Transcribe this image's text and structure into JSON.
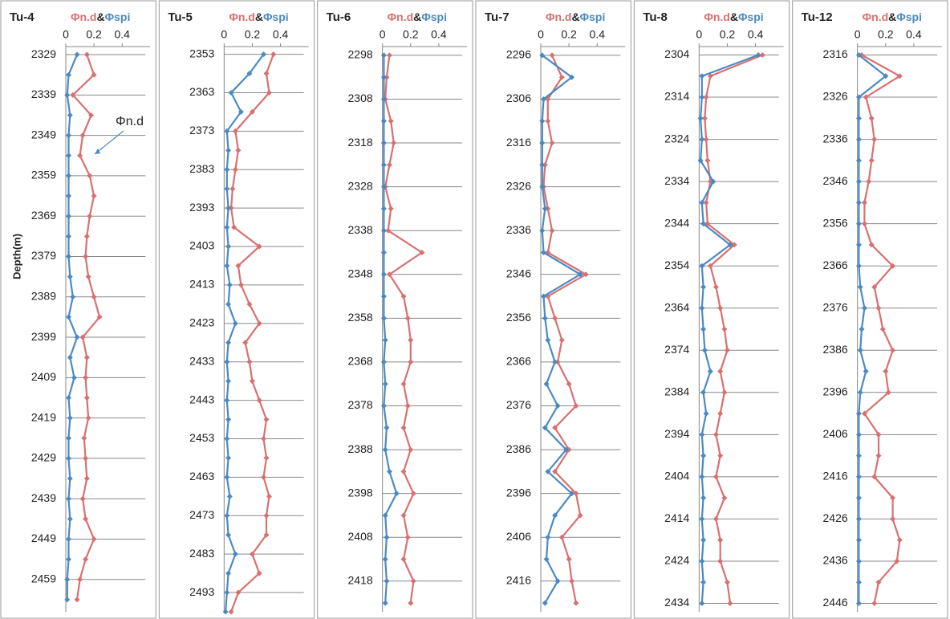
{
  "chart_data": [
    {
      "type": "line",
      "title": "Tu-4",
      "legend_separator": "&",
      "y_label": "Depth(m)",
      "annotation": "Φn.d",
      "depth": [
        2329,
        2334,
        2339,
        2344,
        2349,
        2354,
        2359,
        2364,
        2369,
        2374,
        2379,
        2384,
        2389,
        2394,
        2399,
        2404,
        2409,
        2414,
        2419,
        2424,
        2429,
        2434,
        2439,
        2444,
        2449,
        2454,
        2459,
        2464
      ],
      "series": [
        {
          "name": "Φn.d",
          "color": "#d9706f",
          "values": [
            0.15,
            0.2,
            0.05,
            0.18,
            0.12,
            0.1,
            0.17,
            0.2,
            0.17,
            0.15,
            0.14,
            0.16,
            0.2,
            0.24,
            0.12,
            0.15,
            0.14,
            0.15,
            0.16,
            0.13,
            0.14,
            0.15,
            0.12,
            0.14,
            0.2,
            0.14,
            0.1,
            0.08
          ]
        },
        {
          "name": "Φspi",
          "color": "#4a8ac4",
          "values": [
            0.08,
            0.02,
            0.01,
            0.03,
            0.02,
            0.02,
            0.02,
            0.02,
            0.02,
            0.02,
            0.02,
            0.03,
            0.05,
            0.02,
            0.08,
            0.03,
            0.06,
            0.02,
            0.03,
            0.02,
            0.02,
            0.03,
            0.02,
            0.03,
            0.02,
            0.02,
            0.01,
            0.01
          ]
        }
      ],
      "xlim": [
        0,
        0.6
      ],
      "xticks": [
        0,
        0.2,
        0.4
      ],
      "ylim": [
        2327,
        2467
      ],
      "yticks": [
        2329,
        2339,
        2349,
        2359,
        2369,
        2379,
        2389,
        2399,
        2409,
        2419,
        2429,
        2439,
        2449,
        2459
      ],
      "grid": true
    },
    {
      "type": "line",
      "title": "Tu-5",
      "legend_separator": "&",
      "depth": [
        2353,
        2358,
        2363,
        2368,
        2373,
        2378,
        2383,
        2388,
        2393,
        2398,
        2403,
        2408,
        2413,
        2418,
        2423,
        2428,
        2433,
        2438,
        2443,
        2448,
        2453,
        2458,
        2463,
        2468,
        2473,
        2478,
        2483,
        2488,
        2493,
        2498
      ],
      "series": [
        {
          "name": "Φn.d",
          "color": "#d9706f",
          "values": [
            0.35,
            0.3,
            0.32,
            0.2,
            0.08,
            0.1,
            0.08,
            0.06,
            0.05,
            0.07,
            0.25,
            0.1,
            0.12,
            0.18,
            0.25,
            0.15,
            0.18,
            0.2,
            0.25,
            0.3,
            0.28,
            0.3,
            0.28,
            0.32,
            0.3,
            0.3,
            0.2,
            0.25,
            0.1,
            0.05
          ]
        },
        {
          "name": "Φspi",
          "color": "#4a8ac4",
          "values": [
            0.28,
            0.18,
            0.05,
            0.12,
            0.02,
            0.03,
            0.02,
            0.02,
            0.03,
            0.02,
            0.03,
            0.02,
            0.04,
            0.03,
            0.08,
            0.03,
            0.02,
            0.03,
            0.02,
            0.03,
            0.02,
            0.03,
            0.02,
            0.04,
            0.02,
            0.03,
            0.08,
            0.03,
            0.02,
            0.01
          ]
        }
      ],
      "xlim": [
        0,
        0.6
      ],
      "xticks": [
        0,
        0.2,
        0.4
      ],
      "ylim": [
        2351,
        2498
      ],
      "yticks": [
        2353,
        2363,
        2373,
        2383,
        2393,
        2403,
        2413,
        2423,
        2433,
        2443,
        2453,
        2463,
        2473,
        2483,
        2493
      ],
      "grid": true
    },
    {
      "type": "line",
      "title": "Tu-6",
      "legend_separator": "&",
      "depth": [
        2298,
        2303,
        2308,
        2313,
        2318,
        2323,
        2328,
        2333,
        2338,
        2343,
        2348,
        2353,
        2358,
        2363,
        2368,
        2373,
        2378,
        2383,
        2388,
        2393,
        2398,
        2403,
        2408,
        2413,
        2418,
        2423
      ],
      "series": [
        {
          "name": "Φn.d",
          "color": "#d9706f",
          "values": [
            0.05,
            0.03,
            0.02,
            0.06,
            0.08,
            0.05,
            0.02,
            0.06,
            0.04,
            0.28,
            0.05,
            0.15,
            0.18,
            0.2,
            0.2,
            0.15,
            0.18,
            0.15,
            0.2,
            0.15,
            0.22,
            0.15,
            0.18,
            0.15,
            0.22,
            0.2
          ]
        },
        {
          "name": "Φspi",
          "color": "#4a8ac4",
          "values": [
            0.01,
            0.01,
            0.01,
            0.01,
            0.01,
            0.01,
            0.01,
            0.01,
            0.01,
            0.01,
            0.01,
            0.01,
            0.01,
            0.02,
            0.01,
            0.02,
            0.01,
            0.03,
            0.02,
            0.05,
            0.1,
            0.02,
            0.03,
            0.02,
            0.03,
            0.02
          ]
        }
      ],
      "xlim": [
        0,
        0.6
      ],
      "xticks": [
        0,
        0.2,
        0.4
      ],
      "ylim": [
        2296,
        2425
      ],
      "yticks": [
        2298,
        2308,
        2318,
        2328,
        2338,
        2348,
        2358,
        2368,
        2378,
        2388,
        2398,
        2408,
        2418
      ],
      "grid": true
    },
    {
      "type": "line",
      "title": "Tu-7",
      "legend_separator": "&",
      "depth": [
        2296,
        2301,
        2306,
        2311,
        2316,
        2321,
        2326,
        2331,
        2336,
        2341,
        2346,
        2351,
        2356,
        2361,
        2366,
        2371,
        2376,
        2381,
        2386,
        2391,
        2396,
        2401,
        2406,
        2411,
        2416,
        2421
      ],
      "series": [
        {
          "name": "Φn.d",
          "color": "#d9706f",
          "values": [
            0.08,
            0.15,
            0.05,
            0.05,
            0.08,
            0.03,
            0.02,
            0.05,
            0.08,
            0.05,
            0.32,
            0.05,
            0.1,
            0.15,
            0.12,
            0.2,
            0.25,
            0.1,
            0.2,
            0.1,
            0.25,
            0.28,
            0.15,
            0.2,
            0.22,
            0.25
          ]
        },
        {
          "name": "Φspi",
          "color": "#4a8ac4",
          "values": [
            0.01,
            0.22,
            0.02,
            0.01,
            0.01,
            0.01,
            0.01,
            0.03,
            0.01,
            0.02,
            0.28,
            0.02,
            0.03,
            0.05,
            0.1,
            0.04,
            0.12,
            0.03,
            0.18,
            0.05,
            0.22,
            0.1,
            0.05,
            0.04,
            0.12,
            0.03
          ]
        }
      ],
      "xlim": [
        0,
        0.6
      ],
      "xticks": [
        0,
        0.2,
        0.4
      ],
      "ylim": [
        2294,
        2423
      ],
      "yticks": [
        2296,
        2306,
        2316,
        2326,
        2336,
        2346,
        2356,
        2366,
        2376,
        2386,
        2396,
        2406,
        2416
      ],
      "grid": true
    },
    {
      "type": "line",
      "title": "Tu-8",
      "legend_separator": "&",
      "depth": [
        2304,
        2309,
        2314,
        2319,
        2324,
        2329,
        2334,
        2339,
        2344,
        2349,
        2354,
        2359,
        2364,
        2369,
        2374,
        2379,
        2384,
        2389,
        2394,
        2399,
        2404,
        2409,
        2414,
        2419,
        2424,
        2429,
        2434
      ],
      "series": [
        {
          "name": "Φn.d",
          "color": "#d9706f",
          "values": [
            0.45,
            0.08,
            0.05,
            0.04,
            0.05,
            0.06,
            0.08,
            0.05,
            0.06,
            0.25,
            0.08,
            0.12,
            0.15,
            0.18,
            0.2,
            0.15,
            0.18,
            0.15,
            0.12,
            0.15,
            0.12,
            0.18,
            0.12,
            0.15,
            0.15,
            0.2,
            0.22
          ]
        },
        {
          "name": "Φspi",
          "color": "#4a8ac4",
          "values": [
            0.42,
            0.02,
            0.02,
            0.01,
            0.02,
            0.01,
            0.1,
            0.02,
            0.03,
            0.22,
            0.02,
            0.03,
            0.02,
            0.03,
            0.04,
            0.08,
            0.03,
            0.05,
            0.02,
            0.03,
            0.02,
            0.03,
            0.02,
            0.03,
            0.02,
            0.03,
            0.02
          ]
        }
      ],
      "xlim": [
        0,
        0.6
      ],
      "xticks": [
        0,
        0.2,
        0.4
      ],
      "ylim": [
        2302,
        2436
      ],
      "yticks": [
        2304,
        2314,
        2324,
        2334,
        2344,
        2354,
        2364,
        2374,
        2384,
        2394,
        2404,
        2414,
        2424,
        2434
      ],
      "grid": true
    },
    {
      "type": "line",
      "title": "Tu-12",
      "legend_separator": "&",
      "depth": [
        2316,
        2321,
        2326,
        2331,
        2336,
        2341,
        2346,
        2351,
        2356,
        2361,
        2366,
        2371,
        2376,
        2381,
        2386,
        2391,
        2396,
        2401,
        2406,
        2411,
        2416,
        2421,
        2426,
        2431,
        2436,
        2441,
        2446
      ],
      "series": [
        {
          "name": "Φn.d",
          "color": "#d9706f",
          "values": [
            0.03,
            0.3,
            0.06,
            0.1,
            0.12,
            0.1,
            0.08,
            0.05,
            0.05,
            0.1,
            0.25,
            0.12,
            0.15,
            0.18,
            0.25,
            0.2,
            0.22,
            0.05,
            0.15,
            0.15,
            0.12,
            0.25,
            0.25,
            0.3,
            0.28,
            0.15,
            0.12
          ]
        },
        {
          "name": "Φspi",
          "color": "#4a8ac4",
          "values": [
            0.01,
            0.2,
            0.01,
            0.01,
            0.01,
            0.01,
            0.01,
            0.01,
            0.01,
            0.01,
            0.01,
            0.02,
            0.05,
            0.03,
            0.02,
            0.06,
            0.02,
            0.01,
            0.01,
            0.01,
            0.01,
            0.01,
            0.01,
            0.01,
            0.01,
            0.01,
            0.01
          ]
        }
      ],
      "xlim": [
        0,
        0.6
      ],
      "xticks": [
        0,
        0.2,
        0.4
      ],
      "ylim": [
        2314,
        2448
      ],
      "yticks": [
        2316,
        2326,
        2336,
        2346,
        2356,
        2366,
        2376,
        2386,
        2396,
        2406,
        2416,
        2426,
        2436,
        2446
      ],
      "grid": true
    }
  ]
}
